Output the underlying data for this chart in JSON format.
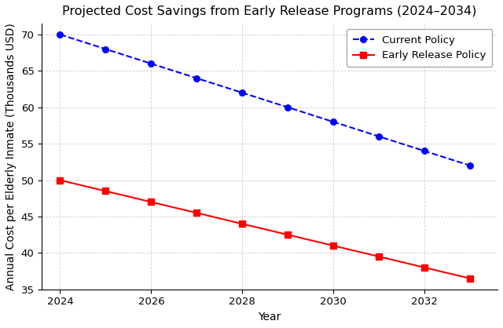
{
  "title": "Projected Cost Savings from Early Release Programs (2024–2034)",
  "xlabel": "Year",
  "ylabel": "Annual Cost per Elderly Inmate (Thousands USD)",
  "years": [
    2024,
    2025,
    2026,
    2027,
    2028,
    2029,
    2030,
    2031,
    2032,
    2033
  ],
  "current_policy": [
    70,
    68,
    66,
    64,
    62,
    60,
    58,
    56,
    54,
    52
  ],
  "early_release": [
    50,
    48.5,
    47,
    45.5,
    44,
    42.5,
    41,
    39.5,
    38,
    36.5
  ],
  "current_color": "blue",
  "early_color": "red",
  "current_label": "Current Policy",
  "early_label": "Early Release Policy",
  "ylim": [
    35,
    71.5
  ],
  "xlim": [
    2023.6,
    2033.6
  ],
  "xticks": [
    2024,
    2026,
    2028,
    2030,
    2032
  ],
  "yticks": [
    35,
    40,
    45,
    50,
    55,
    60,
    65,
    70
  ],
  "bg_color": "white",
  "grid_color": "#cccccc",
  "title_fontsize": 11.5,
  "label_fontsize": 10,
  "tick_fontsize": 9.5,
  "legend_fontsize": 9.5
}
